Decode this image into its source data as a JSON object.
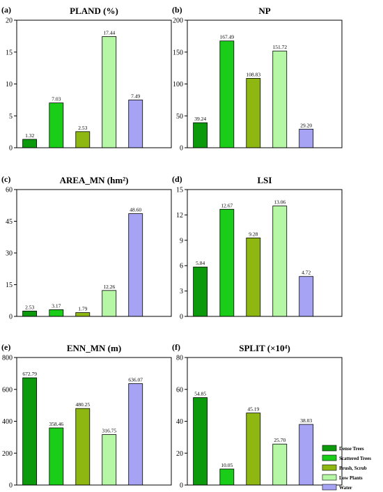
{
  "colors": {
    "Dense Trees": "#0b9a0b",
    "Scattered Trees": "#19cd19",
    "Brush, Scrub": "#8fb711",
    "Low Plants": "#b5f7a5",
    "Water": "#a6a3f5"
  },
  "legend": {
    "placement": "bottom-right",
    "entries": [
      "Dense Trees",
      "Scattered Trees",
      "Brush, Scrub",
      "Low Plants",
      "Water"
    ]
  },
  "chart_data": [
    {
      "type": "bar",
      "panel": "(a)",
      "title": "PLAND (%)",
      "categories": [
        "Dense Trees",
        "Scattered Trees",
        "Brush, Scrub",
        "Low Plants",
        "Water"
      ],
      "values": [
        1.32,
        7.03,
        2.53,
        17.44,
        7.49
      ],
      "value_labels": [
        "1.32",
        "7.03",
        "2.53",
        "17.44",
        "7.49"
      ],
      "ylim": [
        0,
        20
      ],
      "yticks": [
        0,
        5,
        10,
        15,
        20
      ],
      "grid": false
    },
    {
      "type": "bar",
      "panel": "(b)",
      "title": "NP",
      "categories": [
        "Dense Trees",
        "Scattered Trees",
        "Brush, Scrub",
        "Low Plants",
        "Water"
      ],
      "values": [
        39.24,
        167.49,
        108.83,
        151.72,
        29.2
      ],
      "value_labels": [
        "39.24",
        "167.49",
        "108.83",
        "151.72",
        "29.20"
      ],
      "ylim": [
        0,
        200
      ],
      "yticks": [
        0,
        50,
        100,
        150,
        200
      ],
      "grid": false
    },
    {
      "type": "bar",
      "panel": "(c)",
      "title": "AREA_MN (hm²)",
      "categories": [
        "Dense Trees",
        "Scattered Trees",
        "Brush, Scrub",
        "Low Plants",
        "Water"
      ],
      "values": [
        2.53,
        3.17,
        1.79,
        12.26,
        48.6
      ],
      "value_labels": [
        "2.53",
        "3.17",
        "1.79",
        "12.26",
        "48.60"
      ],
      "ylim": [
        0,
        60
      ],
      "yticks": [
        0,
        15,
        30,
        45,
        60
      ],
      "grid": false
    },
    {
      "type": "bar",
      "panel": "(d)",
      "title": "LSI",
      "categories": [
        "Dense Trees",
        "Scattered Trees",
        "Brush, Scrub",
        "Low Plants",
        "Water"
      ],
      "values": [
        5.84,
        12.67,
        9.28,
        13.06,
        4.72
      ],
      "value_labels": [
        "5.84",
        "12.67",
        "9.28",
        "13.06",
        "4.72"
      ],
      "ylim": [
        0,
        15
      ],
      "yticks": [
        0,
        3,
        6,
        9,
        12,
        15
      ],
      "grid": false
    },
    {
      "type": "bar",
      "panel": "(e)",
      "title": "ENN_MN (m)",
      "categories": [
        "Dense Trees",
        "Scattered Trees",
        "Brush, Scrub",
        "Low Plants",
        "Water"
      ],
      "values": [
        672.79,
        358.46,
        480.25,
        316.75,
        636.07
      ],
      "value_labels": [
        "672.79",
        "358.46",
        "480.25",
        "316.75",
        "636.07"
      ],
      "ylim": [
        0,
        800
      ],
      "yticks": [
        0,
        200,
        400,
        600,
        800
      ],
      "grid": false
    },
    {
      "type": "bar",
      "panel": "(f)",
      "title": "SPLIT (×10⁴)",
      "categories": [
        "Dense Trees",
        "Scattered Trees",
        "Brush, Scrub",
        "Low Plants",
        "Water"
      ],
      "values": [
        54.85,
        10.05,
        45.19,
        25.7,
        38.03
      ],
      "value_labels": [
        "54.85",
        "10.05",
        "45.19",
        "25.70",
        "38.03"
      ],
      "ylim": [
        0,
        80
      ],
      "yticks": [
        0,
        20,
        40,
        60,
        80
      ],
      "grid": false
    }
  ]
}
